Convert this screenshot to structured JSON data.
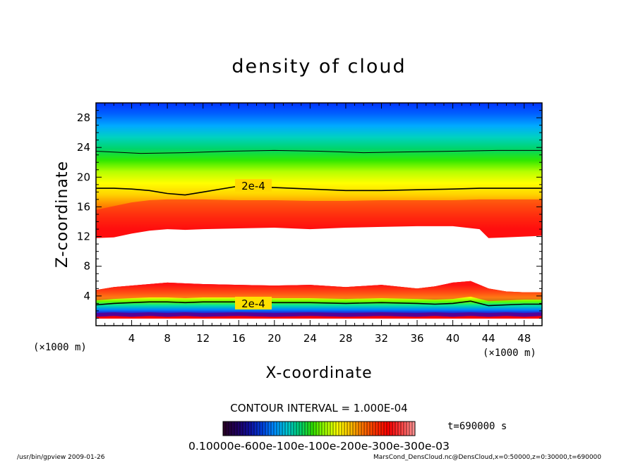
{
  "chart_data": {
    "type": "heatmap",
    "title": "density of cloud",
    "xlabel": "X-coordinate",
    "ylabel": "Z-coordinate",
    "x_unit": "(×1000 m)",
    "y_unit": "(×1000 m)",
    "xlim": [
      0,
      50
    ],
    "ylim": [
      0,
      30
    ],
    "x_ticks": [
      4,
      8,
      12,
      16,
      20,
      24,
      28,
      32,
      36,
      40,
      44,
      48
    ],
    "y_ticks": [
      4,
      8,
      12,
      16,
      20,
      24,
      28
    ],
    "contour_label": "2e-4",
    "contour_interval_text": "CONTOUR INTERVAL = 1.000E-04",
    "time_text": "t=690000 s",
    "colorbar_labels_text": "0.10000e-600e-100e-100e-200e-300e-300e-03",
    "upper_cloud_band": {
      "x": [
        0,
        2,
        4,
        6,
        8,
        10,
        12,
        16,
        20,
        24,
        28,
        32,
        36,
        40,
        43,
        44,
        46,
        48,
        50
      ],
      "base_z": [
        11.8,
        11.9,
        12.4,
        12.8,
        13.0,
        12.9,
        13.0,
        13.1,
        13.2,
        13.0,
        13.2,
        13.3,
        13.4,
        13.4,
        13.0,
        11.8,
        11.9,
        12.0,
        12.1
      ],
      "top_z": [
        18.5,
        18.5,
        18.4,
        18.2,
        17.8,
        17.6,
        18.0,
        18.8,
        18.6,
        18.4,
        18.2,
        18.2,
        18.3,
        18.4,
        18.5,
        18.5,
        18.5,
        18.5,
        18.5
      ],
      "core_z": [
        14.0,
        14.5,
        15.0,
        15.3,
        15.4,
        15.5,
        15.4,
        15.3,
        15.3,
        15.2,
        15.2,
        15.3,
        15.3,
        15.3,
        15.4,
        15.4,
        15.4,
        15.4,
        15.4
      ]
    },
    "lower_cloud_band": {
      "x": [
        0,
        2,
        4,
        6,
        8,
        10,
        12,
        16,
        20,
        24,
        28,
        32,
        36,
        38,
        40,
        42,
        44,
        46,
        48,
        50
      ],
      "top_z": [
        4.8,
        5.2,
        5.4,
        5.6,
        5.8,
        5.7,
        5.6,
        5.5,
        5.4,
        5.5,
        5.2,
        5.5,
        5.0,
        5.3,
        5.8,
        6.0,
        5.0,
        4.6,
        4.5,
        4.5
      ],
      "contour_z": [
        2.8,
        3.0,
        3.1,
        3.2,
        3.2,
        3.1,
        3.2,
        3.2,
        3.1,
        3.1,
        3.0,
        3.1,
        3.0,
        2.9,
        3.0,
        3.3,
        2.7,
        2.8,
        2.9,
        2.9
      ],
      "base_z": [
        1.2,
        1.3,
        1.2,
        1.3,
        1.2,
        1.3,
        1.2,
        1.3,
        1.2,
        1.3,
        1.2,
        1.3,
        1.2,
        1.3,
        1.2,
        1.3,
        1.2,
        1.3,
        1.2,
        1.3
      ]
    },
    "upper_isolines_z": {
      "x": [
        0,
        5,
        10,
        15,
        20,
        25,
        30,
        35,
        40,
        45,
        50
      ],
      "line_23": [
        23.5,
        23.2,
        23.3,
        23.5,
        23.6,
        23.5,
        23.3,
        23.4,
        23.5,
        23.6,
        23.6
      ]
    }
  },
  "colors": {
    "upper_gradient": [
      "#ff0000",
      "#ff3a00",
      "#ff8000",
      "#ffd200",
      "#ffff00",
      "#b6ff00",
      "#30e800",
      "#00d46a",
      "#00d2c0",
      "#00aaff",
      "#0064ff",
      "#0032ff"
    ],
    "lower_gradient": [
      "#ff0000",
      "#ff4a00",
      "#ffa000",
      "#ffff00",
      "#60ff00",
      "#00ddaa",
      "#0080ff",
      "#3000c0",
      "#800090"
    ],
    "colorbar": [
      "#280028",
      "#200060",
      "#1010a0",
      "#0040e0",
      "#0090ff",
      "#00c8d0",
      "#00d070",
      "#30e000",
      "#a0ff00",
      "#ffff00",
      "#ffc000",
      "#ff7000",
      "#ff3000",
      "#ff0000",
      "#ff4040",
      "#ff9090"
    ]
  },
  "footer": {
    "left": "/usr/bin/gpview  2009-01-26",
    "right": "MarsCond_DensCloud.nc@DensCloud,x=0:50000,z=0:30000,t=690000"
  }
}
